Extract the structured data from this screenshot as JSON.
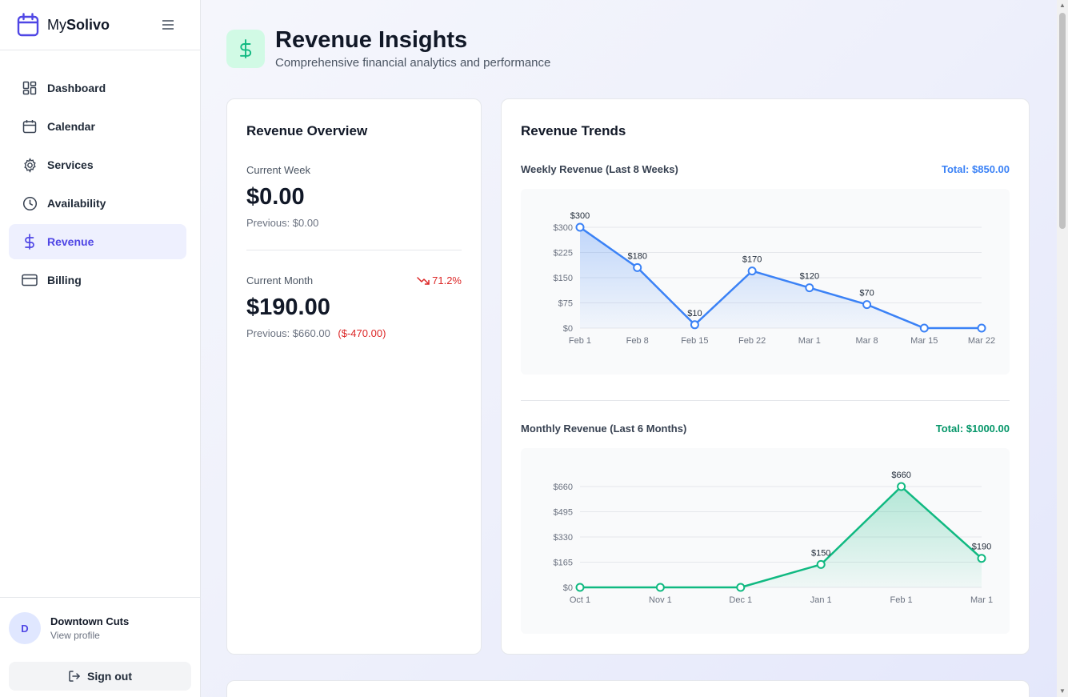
{
  "brand": {
    "prefix": "My",
    "name": "Solivo"
  },
  "sidebar": {
    "items": [
      {
        "label": "Dashboard",
        "icon": "dashboard-icon"
      },
      {
        "label": "Calendar",
        "icon": "calendar-icon"
      },
      {
        "label": "Services",
        "icon": "gear-icon"
      },
      {
        "label": "Availability",
        "icon": "clock-icon"
      },
      {
        "label": "Revenue",
        "icon": "dollar-icon",
        "active": true
      },
      {
        "label": "Billing",
        "icon": "credit-card-icon"
      }
    ]
  },
  "profile": {
    "initial": "D",
    "name": "Downtown Cuts",
    "link": "View profile",
    "signout": "Sign out"
  },
  "header": {
    "icon": "$",
    "title": "Revenue Insights",
    "subtitle": "Comprehensive financial analytics and performance"
  },
  "overview": {
    "title": "Revenue Overview",
    "week": {
      "label": "Current Week",
      "value": "$0.00",
      "previous": "Previous: $0.00"
    },
    "month": {
      "label": "Current Month",
      "change": "71.2%",
      "value": "$190.00",
      "previous": "Previous: $660.00",
      "delta": "($-470.00)"
    }
  },
  "trends": {
    "title": "Revenue Trends",
    "weekly": {
      "name": "Weekly Revenue (Last 8 Weeks)",
      "total": "Total: $850.00"
    },
    "monthly": {
      "name": "Monthly Revenue (Last 6 Months)",
      "total": "Total: $1000.00"
    }
  },
  "colors": {
    "accent": "#4f46e5",
    "weekly": "#3b82f6",
    "monthly": "#10b981",
    "negative": "#dc2626"
  },
  "chart_data": [
    {
      "type": "line",
      "title": "Weekly Revenue (Last 8 Weeks)",
      "x": [
        "Feb 1",
        "Feb 8",
        "Feb 15",
        "Feb 22",
        "Mar 1",
        "Mar 8",
        "Mar 15",
        "Mar 22"
      ],
      "values": [
        300,
        180,
        10,
        170,
        120,
        70,
        0,
        0
      ],
      "labels": [
        "$300",
        "$180",
        "$10",
        "$170",
        "$120",
        "$70",
        "",
        ""
      ],
      "yticks": [
        "$0",
        "$75",
        "$150",
        "$225",
        "$300"
      ],
      "ylim": [
        0,
        300
      ],
      "color": "#3b82f6",
      "grid": true
    },
    {
      "type": "area",
      "title": "Monthly Revenue (Last 6 Months)",
      "x": [
        "Oct 1",
        "Nov 1",
        "Dec 1",
        "Jan 1",
        "Feb 1",
        "Mar 1"
      ],
      "values": [
        0,
        0,
        0,
        150,
        660,
        190
      ],
      "labels": [
        "",
        "",
        "",
        "$150",
        "$660",
        "$190"
      ],
      "yticks": [
        "$0",
        "$165",
        "$330",
        "$495",
        "$660"
      ],
      "ylim": [
        0,
        660
      ],
      "color": "#10b981",
      "grid": true
    }
  ]
}
